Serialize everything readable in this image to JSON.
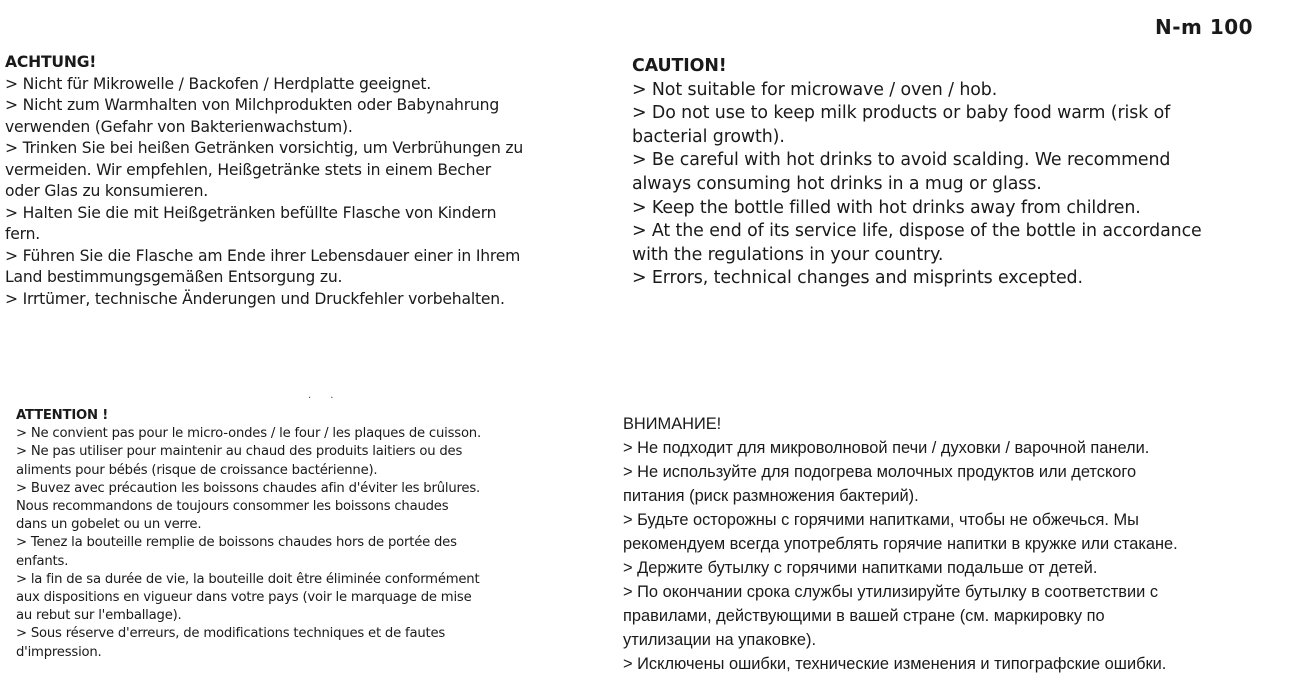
{
  "model": "N-m 100",
  "sections": {
    "de": {
      "heading": "ACHTUNG!",
      "lines": [
        "> Nicht für Mikrowelle / Backofen / Herdplatte geeignet.",
        "> Nicht zum Warmhalten von Milchprodukten oder Babynahrung",
        "verwenden (Gefahr von Bakterienwachstum).",
        "> Trinken Sie bei heißen Getränken vorsichtig, um Verbrühungen zu",
        "vermeiden. Wir empfehlen, Heißgetränke stets in einem Becher",
        "oder Glas zu konsumieren.",
        "> Halten Sie die mit Heißgetränken befüllte Flasche von Kindern",
        "fern.",
        "> Führen Sie die Flasche am Ende ihrer Lebensdauer einer in Ihrem",
        "Land bestimmungsgemäßen Entsorgung zu.",
        "> Irrtümer, technische Änderungen und Druckfehler vorbehalten."
      ]
    },
    "en": {
      "heading": "CAUTION!",
      "lines": [
        "> Not suitable for microwave / oven / hob.",
        "> Do not use to keep milk products or baby food warm (risk of",
        "bacterial growth).",
        "> Be careful with hot drinks to avoid scalding. We recommend",
        "always consuming hot drinks in a mug or glass.",
        "> Keep the bottle filled with hot drinks away from children.",
        "> At the end of its service life, dispose of the bottle in accordance",
        "with the regulations in your country.",
        "> Errors, technical changes and misprints excepted."
      ]
    },
    "fr": {
      "heading": "ATTENTION !",
      "lines": [
        "> Ne convient pas pour le micro-ondes / le four / les plaques de cuisson.",
        "> Ne pas utiliser pour maintenir au chaud des produits laitiers ou des",
        "aliments pour bébés (risque de croissance bactérienne).",
        "> Buvez avec précaution les boissons chaudes afin d'éviter les brûlures.",
        "Nous recommandons de toujours consommer les boissons chaudes",
        "dans un gobelet ou un verre.",
        "> Tenez la bouteille remplie de boissons chaudes hors de portée des",
        "enfants.",
        "> la fin de sa durée de vie, la bouteille doit être éliminée conformément",
        "aux dispositions en vigueur dans votre pays (voir le marquage de mise",
        "au rebut sur l'emballage).",
        "> Sous réserve d'erreurs, de modifications techniques et de fautes",
        "d'impression."
      ]
    },
    "ru": {
      "heading": "ВНИМАНИЕ!",
      "lines": [
        "> Не подходит для микроволновой печи / духовки / варочной панели.",
        "> Не используйте для подогрева молочных продуктов или детского",
        "питания (риск размножения бактерий).",
        "> Будьте осторожны с горячими напитками, чтобы не обжечься. Мы",
        "рекомендуем всегда употреблять горячие напитки в кружке или стакане.",
        "> Держите бутылку с горячими напитками подальше от детей.",
        "> По окончании срока службы утилизируйте бутылку в соответствии с",
        "правилами, действующими в вашей стране (см. маркировку по",
        "утилизации на упаковке).",
        "> Исключены ошибки, технические изменения и типографские ошибки."
      ]
    }
  }
}
